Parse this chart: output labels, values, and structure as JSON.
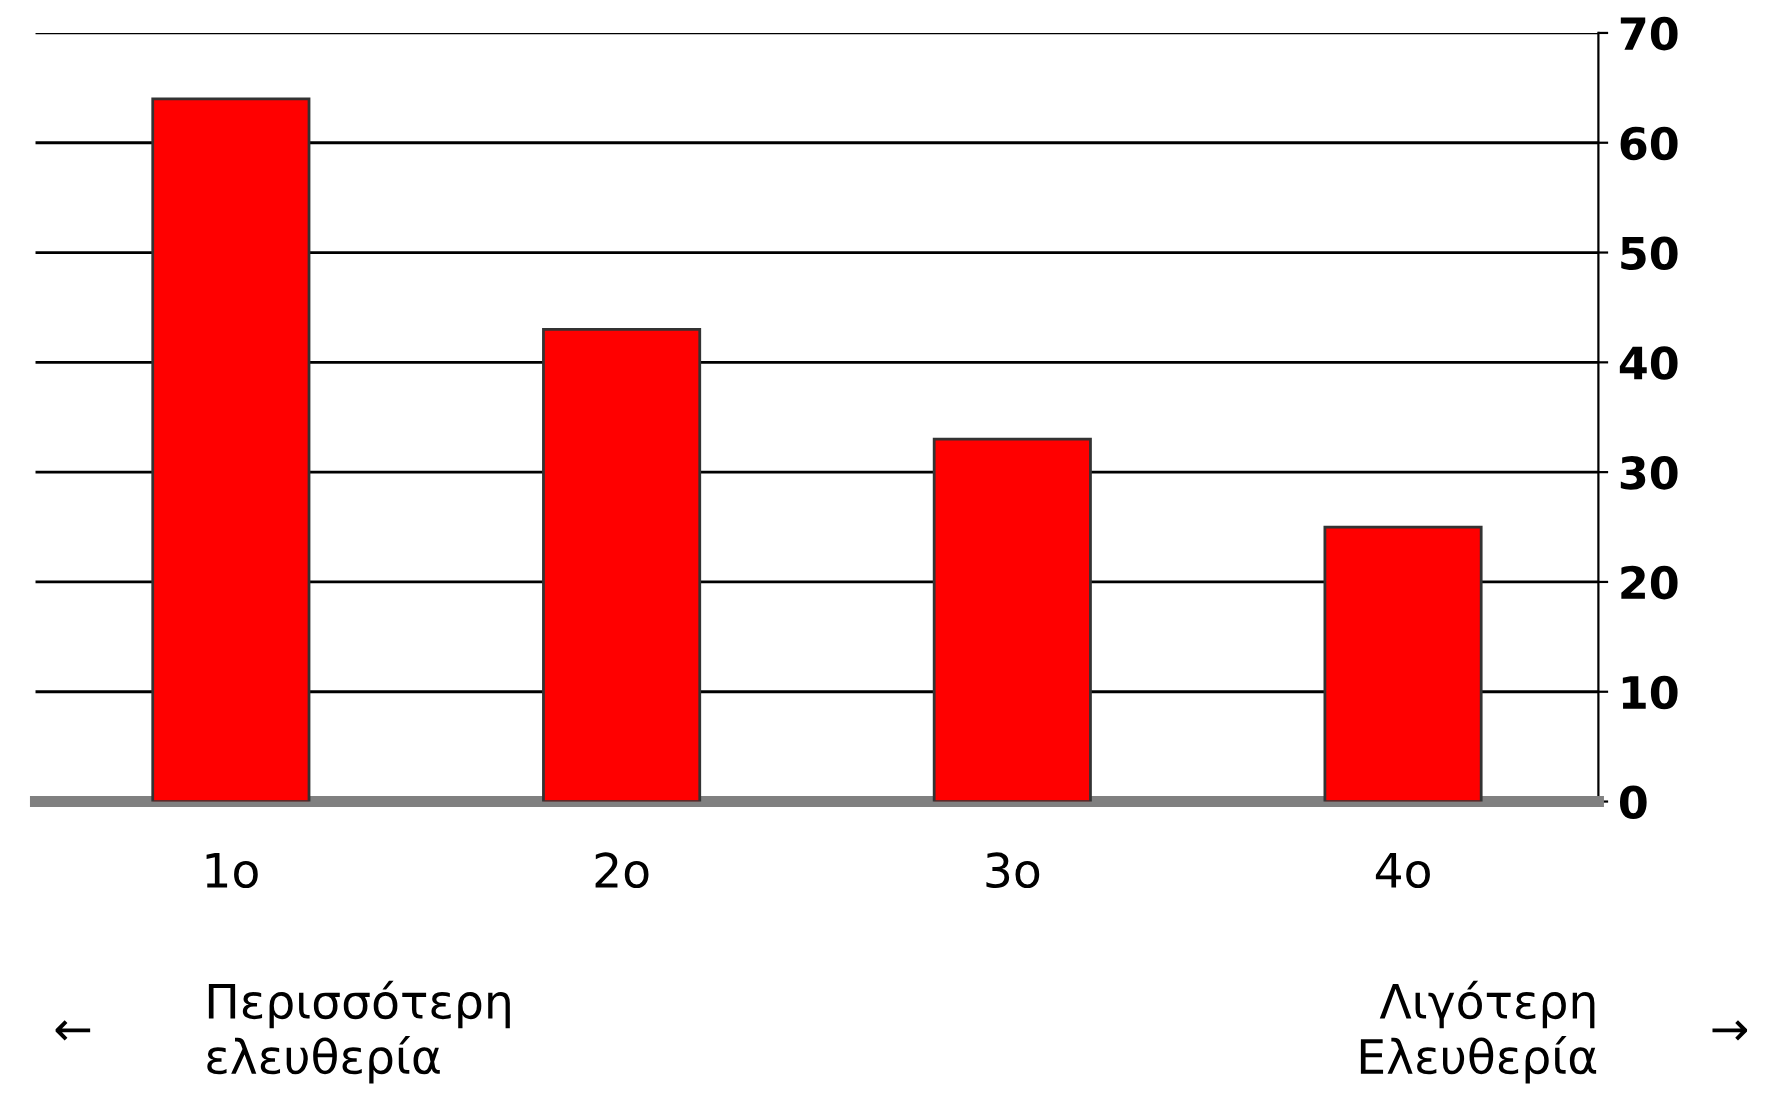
{
  "chart_data": {
    "type": "bar",
    "categories": [
      "1o",
      "2o",
      "3o",
      "4o"
    ],
    "series": [
      {
        "color": "#ff0000",
        "values": [
          64,
          43,
          33,
          25
        ]
      }
    ],
    "ylim": [
      0,
      70
    ],
    "yticks": [
      0,
      10,
      20,
      30,
      40,
      50,
      60,
      70
    ],
    "grid": "y",
    "annotations": [
      "←",
      "Περισσότερη\nελευθερία",
      "Λιγότερη\nΕλευθερία",
      "→"
    ]
  }
}
